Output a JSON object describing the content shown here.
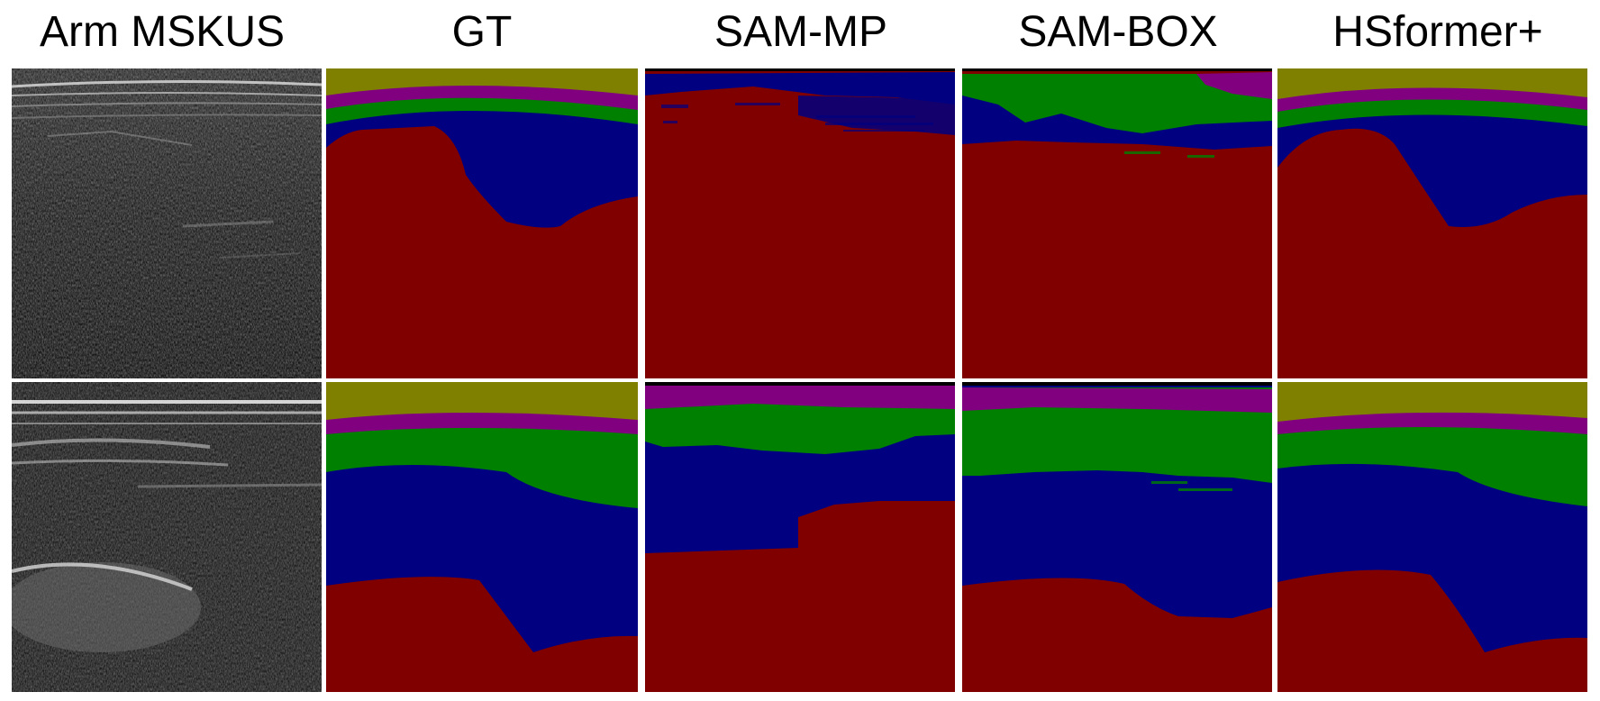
{
  "column_titles": [
    "Arm MSKUS",
    "GT",
    "SAM-MP",
    "SAM-BOX",
    "HSformer+"
  ],
  "colors": {
    "class_1": "#808000",
    "class_2": "#800080",
    "class_3": "#008000",
    "class_4": "#000080",
    "class_5": "#800000",
    "background": "#ffffff",
    "ultrasound_bg": "#141414"
  }
}
